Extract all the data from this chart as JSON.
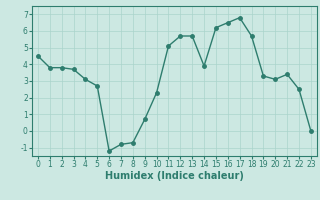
{
  "x": [
    0,
    1,
    2,
    3,
    4,
    5,
    6,
    7,
    8,
    9,
    10,
    11,
    12,
    13,
    14,
    15,
    16,
    17,
    18,
    19,
    20,
    21,
    22,
    23
  ],
  "y": [
    4.5,
    3.8,
    3.8,
    3.7,
    3.1,
    2.7,
    -1.2,
    -0.8,
    -0.7,
    0.7,
    2.3,
    5.1,
    5.7,
    5.7,
    3.9,
    6.2,
    6.5,
    6.8,
    5.7,
    3.3,
    3.1,
    3.4,
    2.5,
    0.0
  ],
  "line_color": "#2e7d6e",
  "marker": "o",
  "markersize": 2.5,
  "linewidth": 1.0,
  "xlabel": "Humidex (Indice chaleur)",
  "xlim": [
    -0.5,
    23.5
  ],
  "ylim": [
    -1.5,
    7.5
  ],
  "yticks": [
    -1,
    0,
    1,
    2,
    3,
    4,
    5,
    6,
    7
  ],
  "xticks": [
    0,
    1,
    2,
    3,
    4,
    5,
    6,
    7,
    8,
    9,
    10,
    11,
    12,
    13,
    14,
    15,
    16,
    17,
    18,
    19,
    20,
    21,
    22,
    23
  ],
  "grid_color": "#aad4cc",
  "bg_color": "#cce8e2",
  "tick_label_fontsize": 5.5,
  "xlabel_fontsize": 7.0,
  "xlabel_fontweight": "bold"
}
